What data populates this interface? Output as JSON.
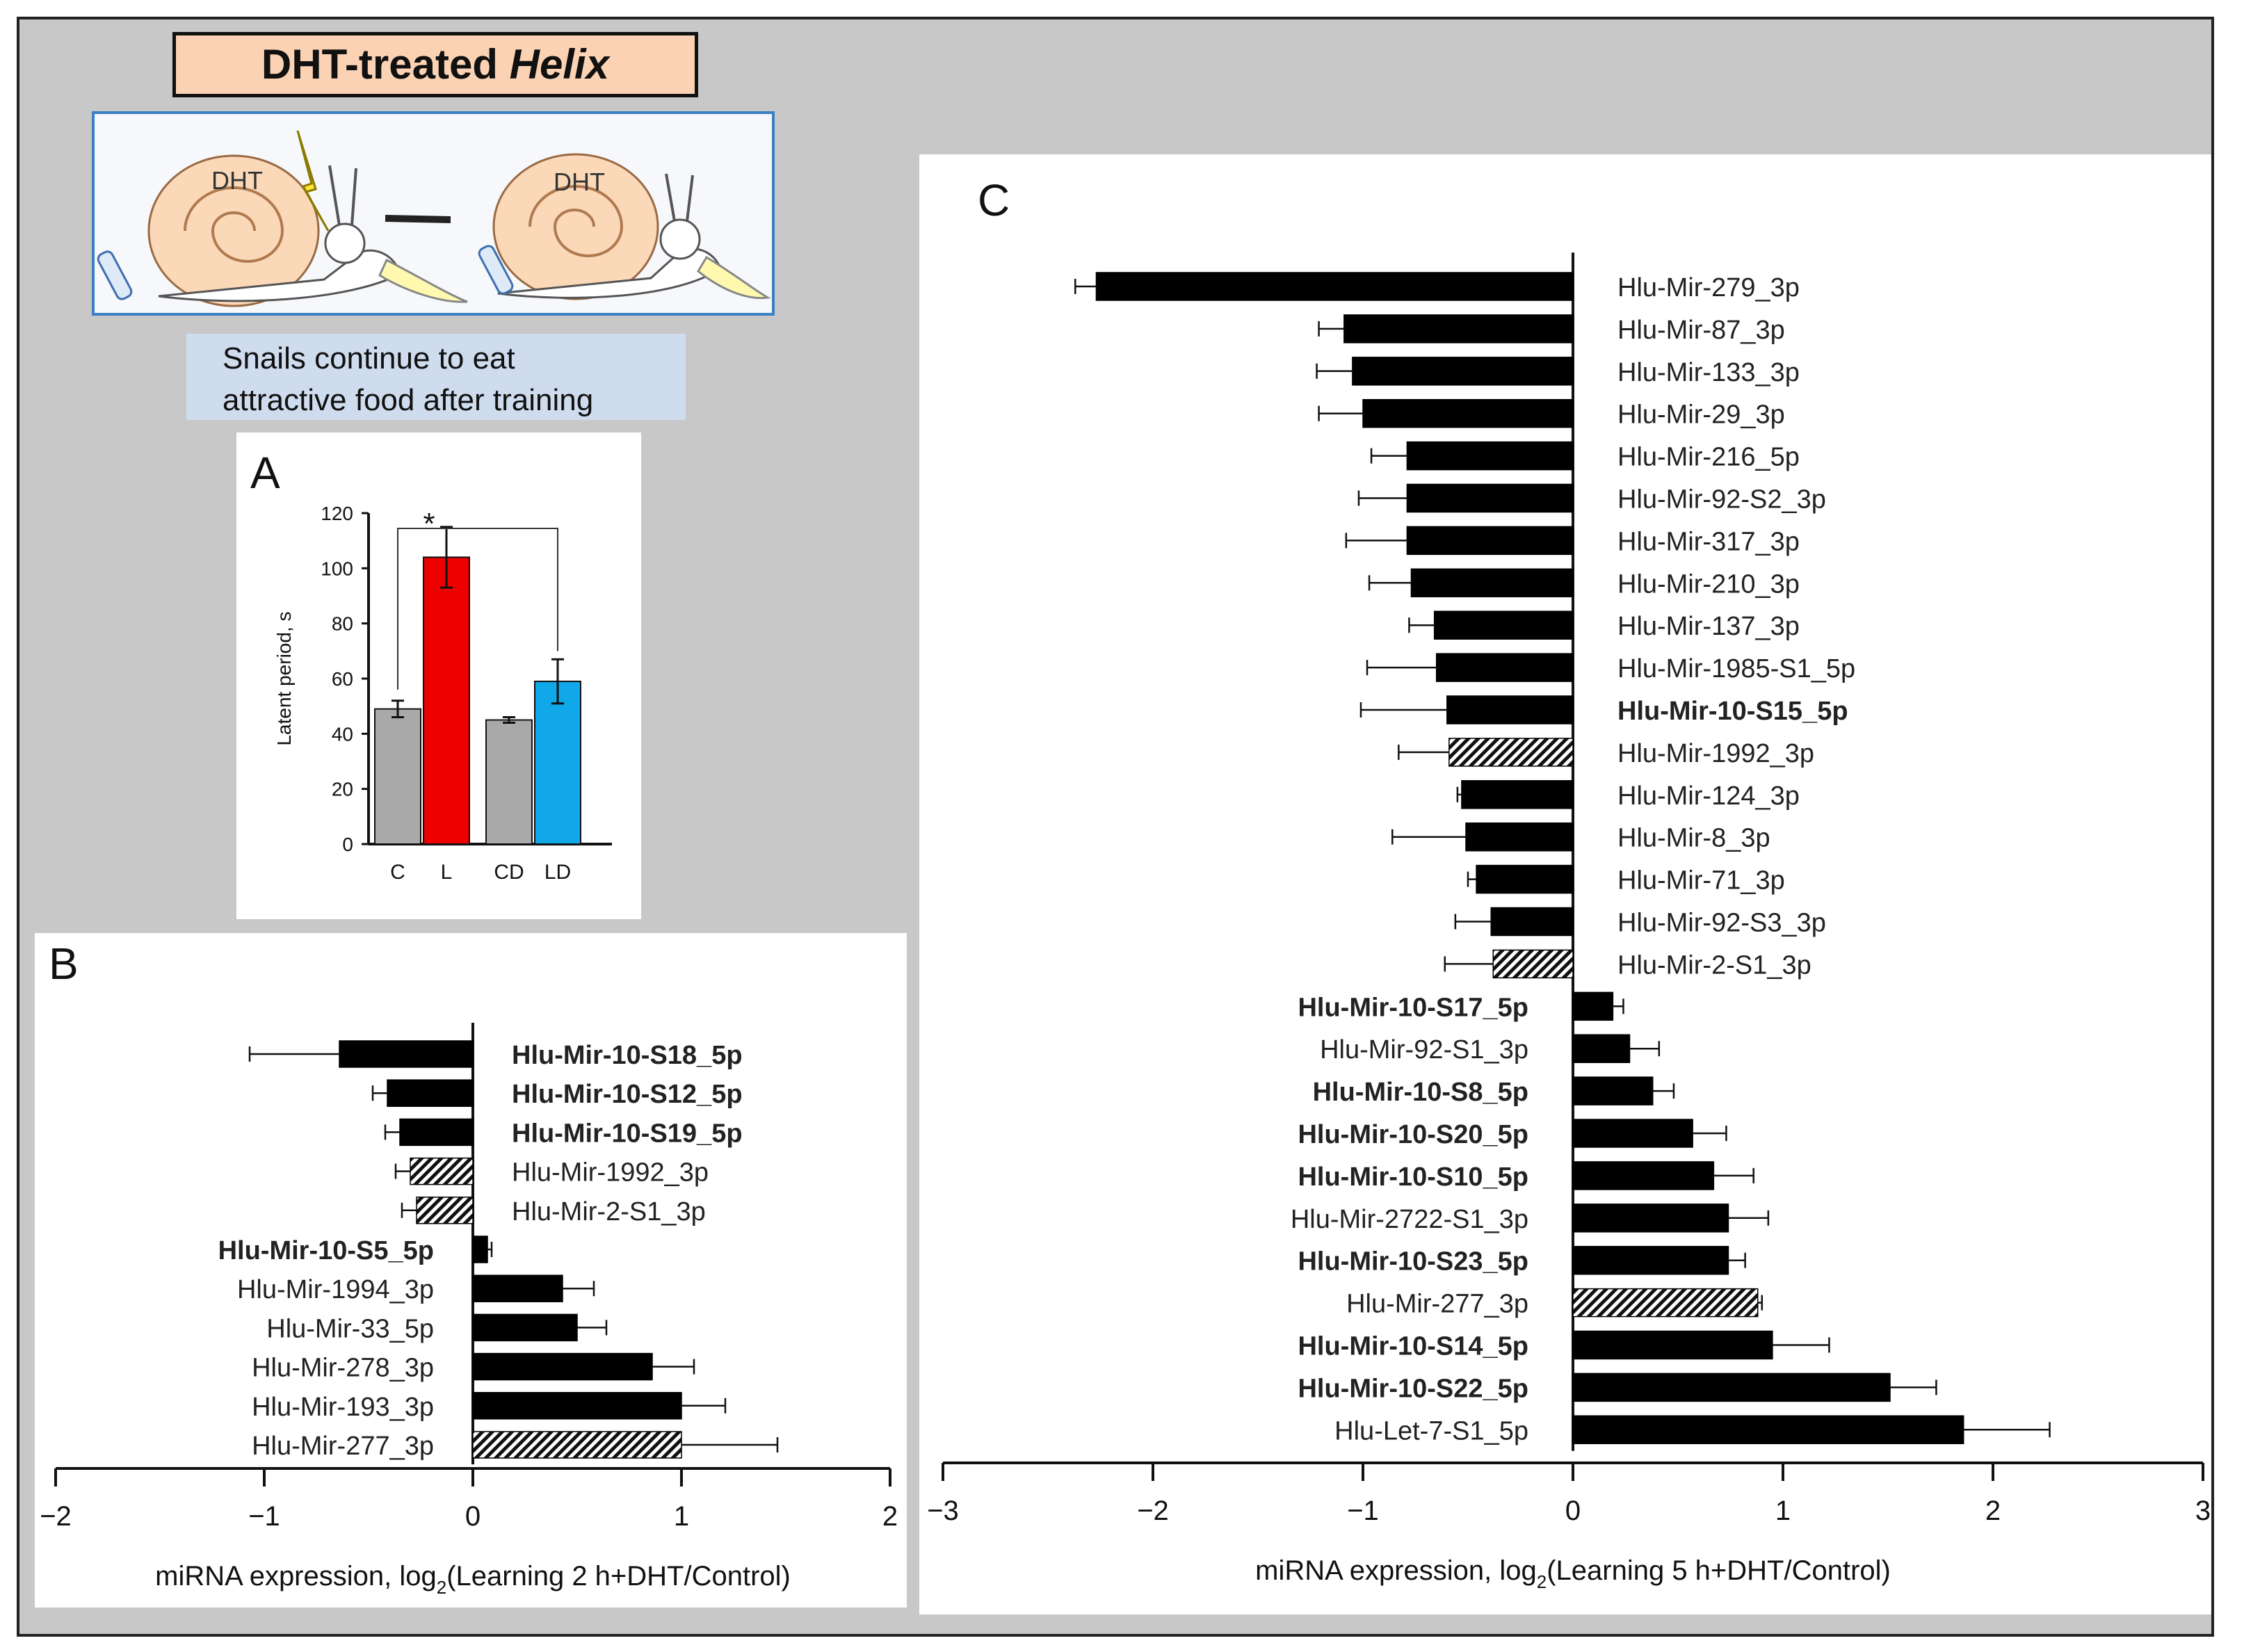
{
  "figure": {
    "title_prefix": "DHT-treated ",
    "title_italic": "Helix",
    "caption_line1": "Snails continue to eat",
    "caption_line2": "attractive food after training",
    "cartoon": {
      "snail_label_1": "DHT",
      "snail_label_2": "DHT"
    }
  },
  "chart_data": [
    {
      "id": "A",
      "panel_label": "A",
      "type": "bar",
      "categories": [
        "C",
        "L",
        "CD",
        "LD"
      ],
      "values": [
        49,
        104,
        45,
        59
      ],
      "errors": [
        3,
        11,
        1,
        8
      ],
      "colors": [
        "#a9a9a9",
        "#ee0000",
        "#a9a9a9",
        "#10a8e8"
      ],
      "ylabel": "Latent period, s",
      "ylim": [
        0,
        120
      ],
      "yticks": [
        0,
        20,
        40,
        60,
        80,
        100,
        120
      ],
      "annotation": "*"
    },
    {
      "id": "B",
      "panel_label": "B",
      "type": "bar",
      "orientation": "horizontal",
      "categories": [
        "Hlu-Mir-10-S18_5p",
        "Hlu-Mir-10-S12_5p",
        "Hlu-Mir-10-S19_5p",
        "Hlu-Mir-1992_3p",
        "Hlu-Mir-2-S1_3p",
        "Hlu-Mir-10-S5_5p",
        "Hlu-Mir-1994_3p",
        "Hlu-Mir-33_5p",
        "Hlu-Mir-278_3p",
        "Hlu-Mir-193_3p",
        "Hlu-Mir-277_3p"
      ],
      "values": [
        -0.64,
        -0.41,
        -0.35,
        -0.3,
        -0.27,
        0.07,
        0.43,
        0.5,
        0.86,
        1.0,
        1.0
      ],
      "errors": [
        0.43,
        0.07,
        0.07,
        0.07,
        0.07,
        0.02,
        0.15,
        0.14,
        0.2,
        0.21,
        0.46
      ],
      "bold": [
        true,
        true,
        true,
        false,
        false,
        true,
        false,
        false,
        false,
        false,
        false
      ],
      "hatched": [
        false,
        false,
        false,
        true,
        true,
        false,
        false,
        false,
        false,
        false,
        true
      ],
      "xlim": [
        -2,
        2
      ],
      "xticks": [
        -2,
        -1,
        0,
        1,
        2
      ],
      "xlabel_main": "miRNA expression, log",
      "xlabel_sub": "2",
      "xlabel_rest": "(Learning 2 h+DHT/Control)"
    },
    {
      "id": "C",
      "panel_label": "C",
      "type": "bar",
      "orientation": "horizontal",
      "categories": [
        "Hlu-Mir-279_3p",
        "Hlu-Mir-87_3p",
        "Hlu-Mir-133_3p",
        "Hlu-Mir-29_3p",
        "Hlu-Mir-216_5p",
        "Hlu-Mir-92-S2_3p",
        "Hlu-Mir-317_3p",
        "Hlu-Mir-210_3p",
        "Hlu-Mir-137_3p",
        "Hlu-Mir-1985-S1_5p",
        "Hlu-Mir-10-S15_5p",
        "Hlu-Mir-1992_3p",
        "Hlu-Mir-124_3p",
        "Hlu-Mir-8_3p",
        "Hlu-Mir-71_3p",
        "Hlu-Mir-92-S3_3p",
        "Hlu-Mir-2-S1_3p",
        "Hlu-Mir-10-S17_5p",
        "Hlu-Mir-92-S1_3p",
        "Hlu-Mir-10-S8_5p",
        "Hlu-Mir-10-S20_5p",
        "Hlu-Mir-10-S10_5p",
        "Hlu-Mir-2722-S1_3p",
        "Hlu-Mir-10-S23_5p",
        "Hlu-Mir-277_3p",
        "Hlu-Mir-10-S14_5p",
        "Hlu-Mir-10-S22_5p",
        "Hlu-Let-7-S1_5p"
      ],
      "values": [
        -2.27,
        -1.09,
        -1.05,
        -1.0,
        -0.79,
        -0.79,
        -0.79,
        -0.77,
        -0.66,
        -0.65,
        -0.6,
        -0.59,
        -0.53,
        -0.51,
        -0.46,
        -0.39,
        -0.38,
        0.19,
        0.27,
        0.38,
        0.57,
        0.67,
        0.74,
        0.74,
        0.88,
        0.95,
        1.51,
        1.86
      ],
      "errors": [
        0.1,
        0.12,
        0.17,
        0.21,
        0.17,
        0.23,
        0.29,
        0.2,
        0.12,
        0.33,
        0.41,
        0.24,
        0.02,
        0.35,
        0.04,
        0.17,
        0.23,
        0.05,
        0.14,
        0.1,
        0.16,
        0.19,
        0.19,
        0.08,
        0.02,
        0.27,
        0.22,
        0.41
      ],
      "bold": [
        false,
        false,
        false,
        false,
        false,
        false,
        false,
        false,
        false,
        false,
        true,
        false,
        false,
        false,
        false,
        false,
        false,
        true,
        false,
        true,
        true,
        true,
        false,
        true,
        false,
        true,
        true,
        false
      ],
      "hatched": [
        false,
        false,
        false,
        false,
        false,
        false,
        false,
        false,
        false,
        false,
        false,
        true,
        false,
        false,
        false,
        false,
        true,
        false,
        false,
        false,
        false,
        false,
        false,
        false,
        true,
        false,
        false,
        false
      ],
      "xlim": [
        -3,
        3
      ],
      "xticks": [
        -3,
        -2,
        -1,
        0,
        1,
        2,
        3
      ],
      "xlabel_main": "miRNA expression, log",
      "xlabel_sub": "2",
      "xlabel_rest": "(Learning 5 h+DHT/Control)"
    }
  ]
}
